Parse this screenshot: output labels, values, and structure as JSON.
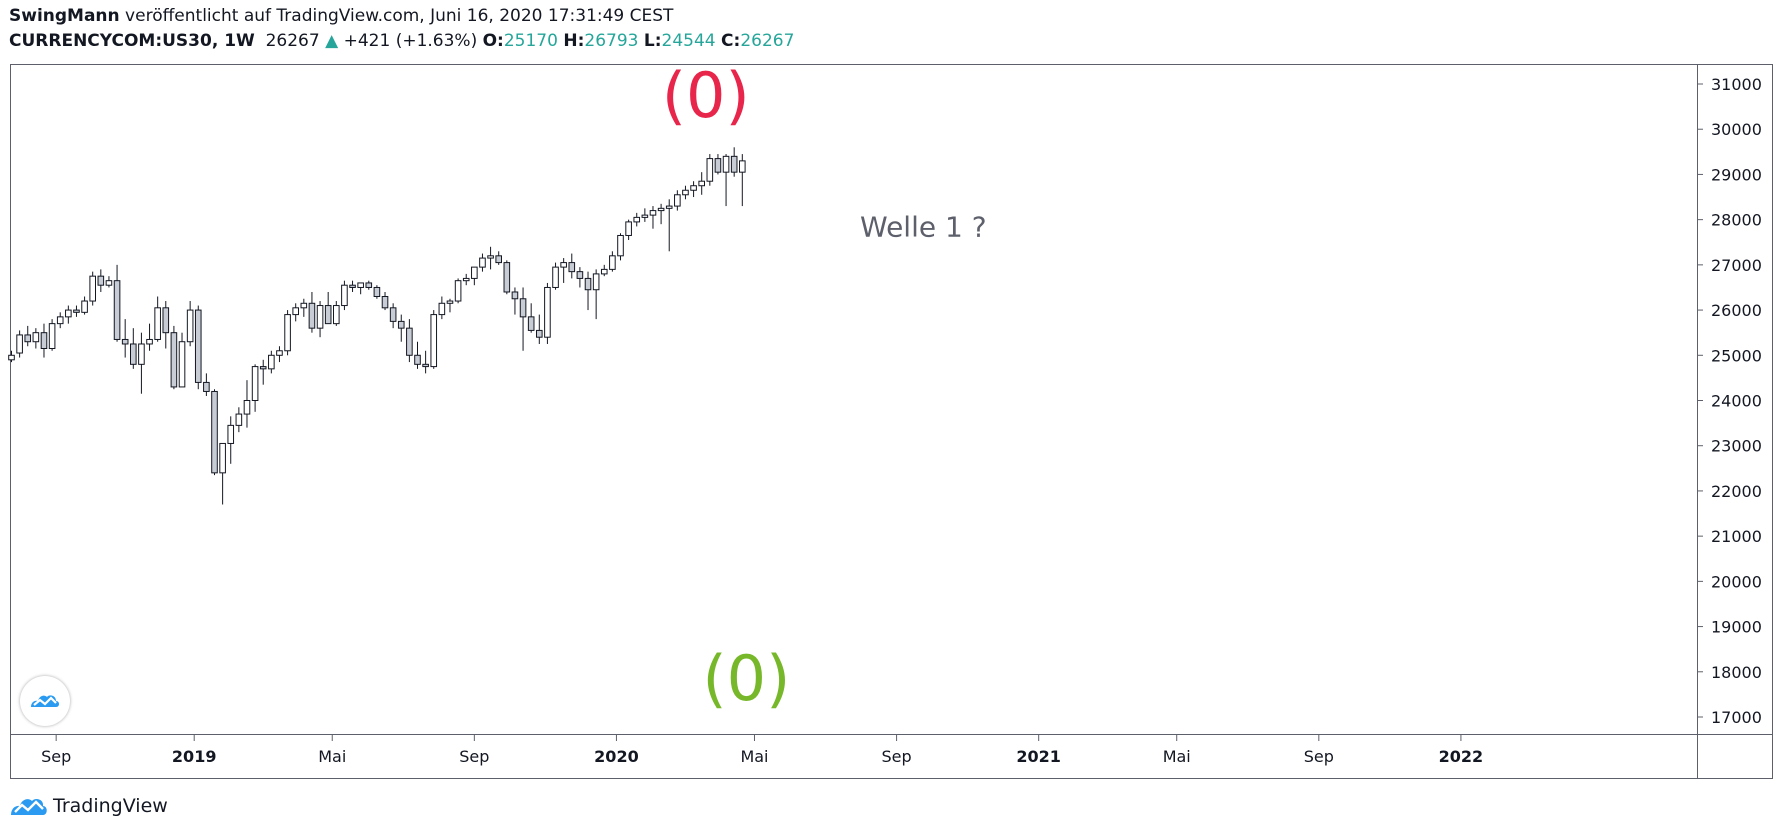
{
  "header": {
    "author": "SwingMann",
    "published_text": " veröffentlicht auf TradingView.com, Juni 16, 2020 17:31:49 CEST",
    "symbol": "CURRENCYCOM:US30, 1W",
    "last": "26267",
    "arrow": "▲",
    "change": "+421 (+1.63%)",
    "o_label": "O:",
    "o_value": "25170",
    "h_label": "H:",
    "h_value": "26793",
    "l_label": "L:",
    "l_value": "24544",
    "c_label": "C:",
    "c_value": "26267"
  },
  "footer": {
    "brand": "TradingView"
  },
  "colors": {
    "up_body": "#ffffff",
    "down_body": "#c8ccd4",
    "wick": "#131722",
    "label_top": "#e8254a",
    "label_bottom": "#77b82b",
    "annotation": "#5d606b",
    "axis_text": "#131722",
    "frame": "#5d606b"
  },
  "icons": {
    "logo": "tradingview-logo-icon"
  },
  "chart_data": {
    "type": "candlestick",
    "title": "CURRENCYCOM:US30, 1W",
    "interval": "1W",
    "ylim": [
      16700,
      31400
    ],
    "y_ticks": [
      "17000",
      "18000",
      "19000",
      "20000",
      "21000",
      "22000",
      "23000",
      "24000",
      "25000",
      "26000",
      "27000",
      "28000",
      "29000",
      "30000",
      "31000"
    ],
    "x_ticks": [
      {
        "label": "Sep",
        "bold": false,
        "bar": 5.5
      },
      {
        "label": "2019",
        "bold": true,
        "bar": 22.5
      },
      {
        "label": "Mai",
        "bold": false,
        "bar": 39.5
      },
      {
        "label": "Sep",
        "bold": false,
        "bar": 57
      },
      {
        "label": "2020",
        "bold": true,
        "bar": 74.5
      },
      {
        "label": "Mai",
        "bold": false,
        "bar": 91.5
      },
      {
        "label": "Sep",
        "bold": false,
        "bar": 109
      },
      {
        "label": "2021",
        "bold": true,
        "bar": 126.5
      },
      {
        "label": "Mai",
        "bold": false,
        "bar": 143.5
      },
      {
        "label": "Sep",
        "bold": false,
        "bar": 161
      },
      {
        "label": "2022",
        "bold": true,
        "bar": 178.5
      }
    ],
    "ohlc": [
      [
        24900,
        25100,
        24850,
        25000
      ],
      [
        25050,
        25550,
        24950,
        25450
      ],
      [
        25450,
        25650,
        25200,
        25300
      ],
      [
        25300,
        25600,
        25150,
        25500
      ],
      [
        25500,
        25700,
        24950,
        25150
      ],
      [
        25150,
        25800,
        25100,
        25700
      ],
      [
        25700,
        25950,
        25600,
        25850
      ],
      [
        25850,
        26100,
        25700,
        26000
      ],
      [
        26000,
        26100,
        25850,
        25950
      ],
      [
        25950,
        26300,
        25900,
        26200
      ],
      [
        26200,
        26850,
        26100,
        26750
      ],
      [
        26750,
        26900,
        26400,
        26550
      ],
      [
        26550,
        26750,
        26500,
        26650
      ],
      [
        26650,
        27000,
        25300,
        25350
      ],
      [
        25350,
        25800,
        24950,
        25250
      ],
      [
        25250,
        25600,
        24700,
        24800
      ],
      [
        24800,
        25500,
        24150,
        25250
      ],
      [
        25250,
        25700,
        25100,
        25350
      ],
      [
        25350,
        26300,
        25300,
        26050
      ],
      [
        26050,
        26200,
        25150,
        25500
      ],
      [
        25500,
        25650,
        24250,
        24300
      ],
      [
        24300,
        25500,
        24300,
        25300
      ],
      [
        25300,
        26200,
        25200,
        26000
      ],
      [
        26000,
        26100,
        24250,
        24400
      ],
      [
        24400,
        24600,
        24100,
        24200
      ],
      [
        24200,
        24250,
        22350,
        22400
      ],
      [
        22400,
        23000,
        21700,
        23050
      ],
      [
        23050,
        23650,
        22600,
        23450
      ],
      [
        23450,
        23850,
        23300,
        23700
      ],
      [
        23700,
        24450,
        23400,
        24000
      ],
      [
        24000,
        24800,
        23750,
        24750
      ],
      [
        24750,
        24900,
        24350,
        24700
      ],
      [
        24700,
        25100,
        24600,
        25000
      ],
      [
        25000,
        25200,
        24850,
        25100
      ],
      [
        25100,
        26000,
        25000,
        25900
      ],
      [
        25900,
        26150,
        25750,
        26050
      ],
      [
        26050,
        26250,
        25850,
        26150
      ],
      [
        26150,
        26400,
        25500,
        25600
      ],
      [
        25600,
        26200,
        25400,
        26100
      ],
      [
        26100,
        26400,
        25700,
        25700
      ],
      [
        25700,
        26200,
        25650,
        26100
      ],
      [
        26100,
        26650,
        26000,
        26550
      ],
      [
        26550,
        26650,
        26400,
        26500
      ],
      [
        26500,
        26600,
        26350,
        26600
      ],
      [
        26600,
        26650,
        26450,
        26500
      ],
      [
        26500,
        26550,
        26250,
        26300
      ],
      [
        26300,
        26400,
        26000,
        26050
      ],
      [
        26050,
        26150,
        25600,
        25750
      ],
      [
        25750,
        25900,
        25300,
        25600
      ],
      [
        25600,
        25800,
        24850,
        25000
      ],
      [
        25000,
        25300,
        24700,
        24800
      ],
      [
        24800,
        25100,
        24600,
        24750
      ],
      [
        24750,
        26000,
        24700,
        25900
      ],
      [
        25900,
        26300,
        25800,
        26150
      ],
      [
        26150,
        26250,
        25950,
        26200
      ],
      [
        26200,
        26700,
        26150,
        26650
      ],
      [
        26650,
        26800,
        26550,
        26700
      ],
      [
        26700,
        26950,
        26550,
        26950
      ],
      [
        26950,
        27250,
        26850,
        27150
      ],
      [
        27150,
        27400,
        26900,
        27200
      ],
      [
        27200,
        27300,
        27000,
        27050
      ],
      [
        27050,
        27100,
        26350,
        26400
      ],
      [
        26400,
        26500,
        25900,
        26250
      ],
      [
        26250,
        26500,
        25100,
        25850
      ],
      [
        25850,
        26150,
        25500,
        25550
      ],
      [
        25550,
        25900,
        25250,
        25400
      ],
      [
        25400,
        26600,
        25250,
        26500
      ],
      [
        26500,
        27050,
        26450,
        26950
      ],
      [
        26950,
        27150,
        26600,
        27050
      ],
      [
        27050,
        27250,
        26700,
        26850
      ],
      [
        26850,
        26950,
        26500,
        26700
      ],
      [
        26700,
        26850,
        26000,
        26450
      ],
      [
        26450,
        26900,
        25800,
        26800
      ],
      [
        26800,
        27000,
        26750,
        26900
      ],
      [
        26900,
        27300,
        26850,
        27200
      ],
      [
        27200,
        27700,
        27100,
        27650
      ],
      [
        27650,
        28000,
        27550,
        27950
      ],
      [
        27950,
        28150,
        27850,
        28050
      ],
      [
        28050,
        28250,
        27950,
        28100
      ],
      [
        28100,
        28300,
        27800,
        28200
      ],
      [
        28200,
        28350,
        27900,
        28250
      ],
      [
        28250,
        28450,
        27300,
        28300
      ],
      [
        28300,
        28650,
        28200,
        28550
      ],
      [
        28550,
        28750,
        28450,
        28650
      ],
      [
        28650,
        28850,
        28500,
        28750
      ],
      [
        28750,
        29050,
        28550,
        28850
      ],
      [
        28850,
        29450,
        28750,
        29350
      ],
      [
        29350,
        29450,
        29000,
        29050
      ],
      [
        29050,
        29450,
        28300,
        29400
      ],
      [
        29400,
        29600,
        28950,
        29050
      ],
      [
        29050,
        29450,
        28300,
        29300
      ]
    ],
    "annotations": [
      {
        "text": "(0)",
        "price": 30650,
        "bar": 85.5,
        "color": "label_top"
      },
      {
        "text": "Welle 1 ?",
        "price": 27800,
        "bar": 104.5,
        "color": "annotation"
      },
      {
        "text": "(0)",
        "price": 17750,
        "bar": 90.5,
        "color": "label_bottom"
      }
    ]
  }
}
